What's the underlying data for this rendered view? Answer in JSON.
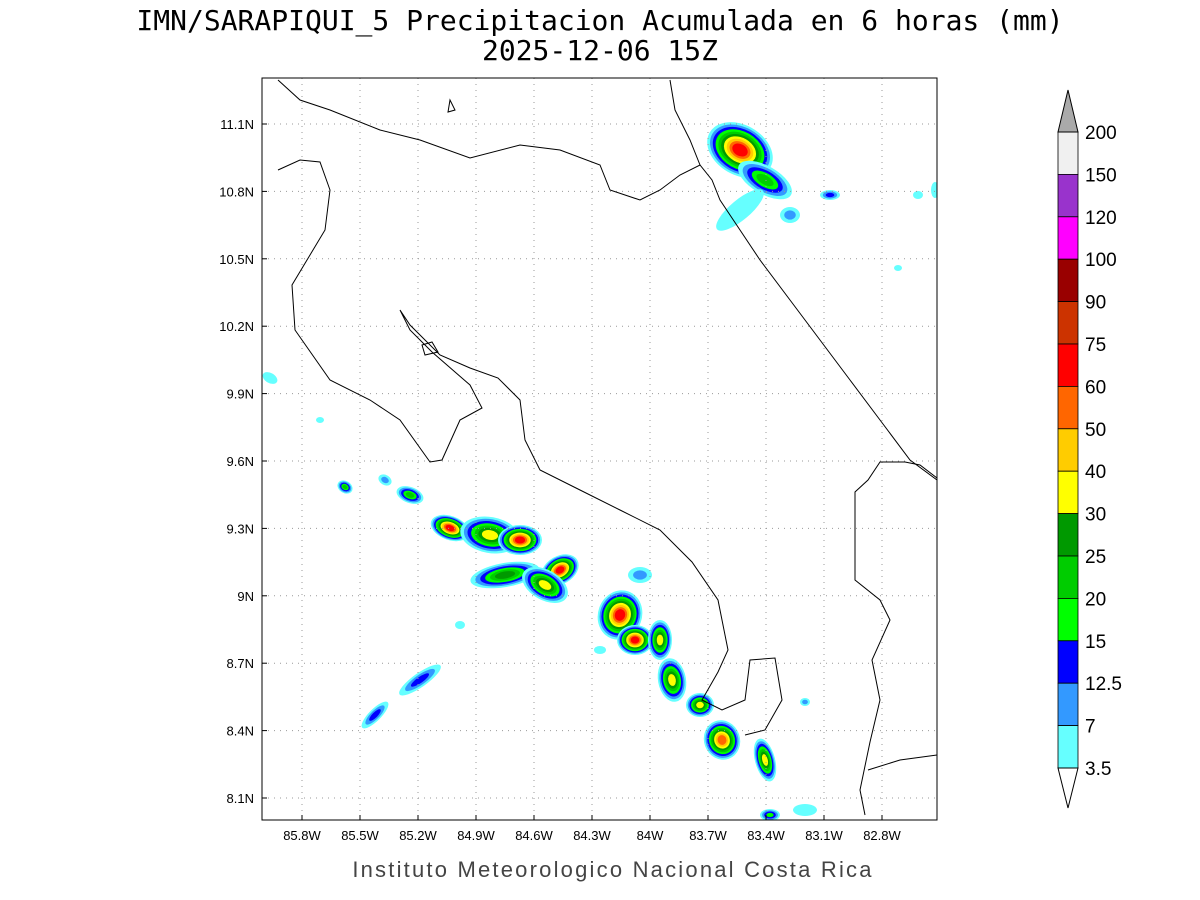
{
  "title": "IMN/SARAPIQUI_5 Precipitacion Acumulada en 6 horas (mm)",
  "subtitle": "2025-12-06 15Z",
  "lon_labels": [
    "85.8W",
    "85.5W",
    "85.2W",
    "84.9W",
    "84.6W",
    "84.3W",
    "84W",
    "83.7W",
    "83.4W",
    "83.1W",
    "82.8W"
  ],
  "lat_labels": [
    "11.1N",
    "10.8N",
    "10.5N",
    "10.2N",
    "9.9N",
    "9.6N",
    "9.3N",
    "9N",
    "8.7N",
    "8.4N",
    "8.1N"
  ],
  "colorbar": {
    "levels": [
      200,
      150,
      120,
      100,
      90,
      75,
      60,
      50,
      40,
      30,
      25,
      20,
      15,
      12.5,
      7,
      3.5
    ],
    "colors": [
      "#f0f0f0",
      "#9933cc",
      "#ff00ff",
      "#990000",
      "#cc3300",
      "#ff0000",
      "#ff6600",
      "#ffcc00",
      "#ffff00",
      "#009900",
      "#00cc00",
      "#00ff00",
      "#0000ff",
      "#3399ff",
      "#66ffff"
    ],
    "over_color": "#aaaaaa",
    "under_color": "#ffffff"
  },
  "footer": "Instituto Meteorologico Nacional Costa Rica"
}
